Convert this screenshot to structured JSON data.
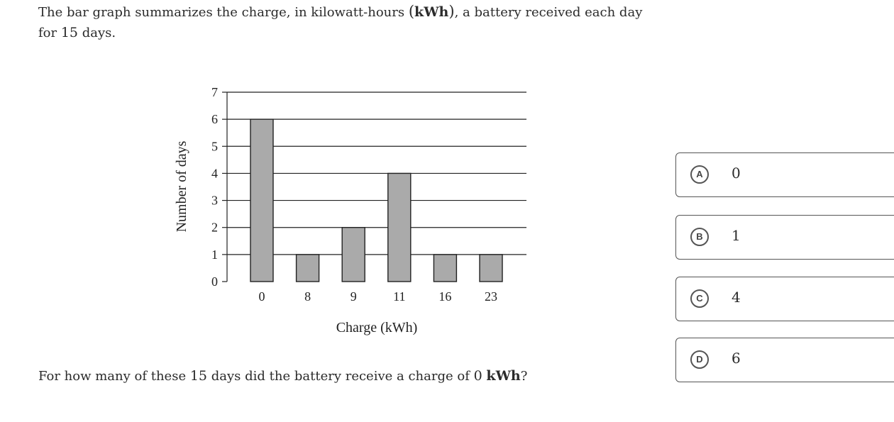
{
  "intro": {
    "part1": "The bar graph summarizes the charge, in kilowatt-hours ",
    "paren_open": "(",
    "unit": "kWh",
    "paren_close": ")",
    "part2": ", a battery received each day",
    "part3": "for ",
    "days": "15",
    "part4": " days."
  },
  "question": {
    "part1": "For how many of these ",
    "days": "15",
    "part2": " days did the battery receive a charge of ",
    "charge": "0",
    "space": " ",
    "unit": "kWh",
    "part3": "?"
  },
  "choices": [
    {
      "letter": "A",
      "value": "0"
    },
    {
      "letter": "B",
      "value": "1"
    },
    {
      "letter": "C",
      "value": "4"
    },
    {
      "letter": "D",
      "value": "6"
    }
  ],
  "chart_data": {
    "type": "bar",
    "categories": [
      "0",
      "8",
      "9",
      "11",
      "16",
      "23"
    ],
    "values": [
      6,
      1,
      2,
      4,
      1,
      1
    ],
    "title": "",
    "xlabel": "Charge (kWh)",
    "ylabel": "Number of days",
    "ylim": [
      0,
      7
    ],
    "yticks": [
      "0",
      "1",
      "2",
      "3",
      "4",
      "5",
      "6",
      "7"
    ],
    "grid": true,
    "bar_color": "#aaaaaa"
  }
}
